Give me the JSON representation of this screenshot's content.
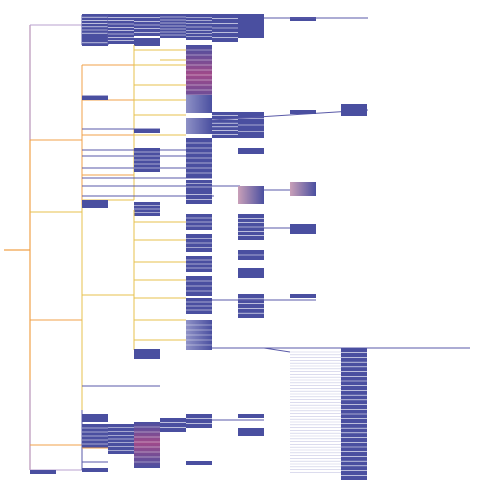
{
  "figure": {
    "kind": "icicle-dendrogram",
    "orientation": "left-to-right",
    "title": "",
    "text_labels": [],
    "colors": {
      "background": "#ffffff",
      "leaf_fill": "#4a4fa0",
      "leaf_fill_light": "#8e91c6",
      "edge_hot": "#f0a24a",
      "edge_warm": "#e7c24c",
      "edge_cool": "#b9a1cf",
      "edge_dark": "#5a5aa8",
      "accent_magenta": "#a04a8a"
    }
  }
}
